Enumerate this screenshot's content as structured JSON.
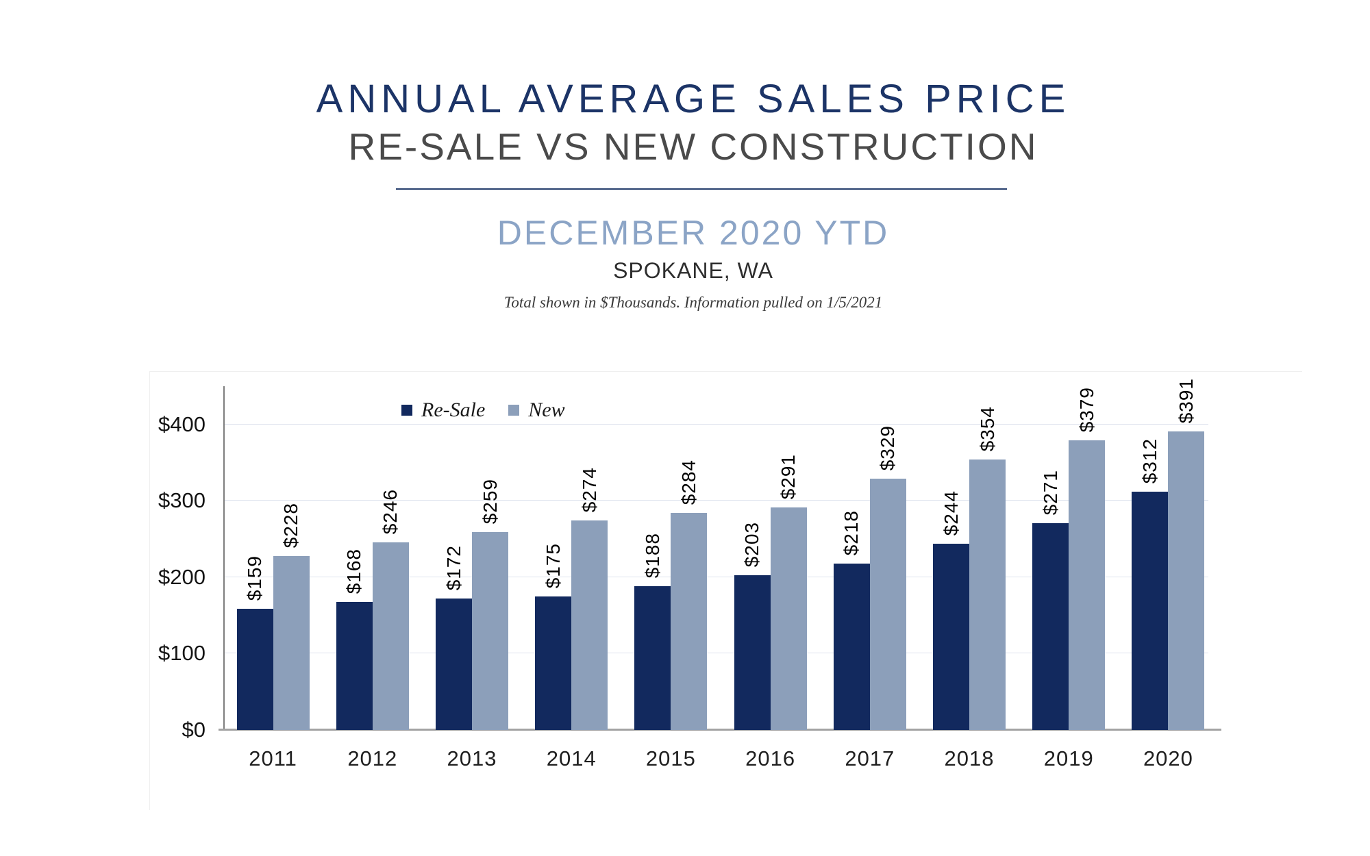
{
  "header": {
    "title": "ANNUAL AVERAGE SALES PRICE",
    "subtitle": "RE-SALE VS NEW CONSTRUCTION",
    "period": "DECEMBER 2020 YTD",
    "location": "SPOKANE, WA",
    "note": "Total shown in $Thousands. Information pulled on 1/5/2021"
  },
  "colors": {
    "title_navy": "#1c3467",
    "subtitle_gray": "#4a4a4a",
    "period_blue": "#8ba4c6",
    "divider_navy": "#27406e",
    "resale_bar": "#12295e",
    "new_bar": "#8c9fba",
    "gridline": "#dde2ed",
    "axis_gray": "#a3a3a3"
  },
  "chart_data": {
    "type": "bar",
    "title": "ANNUAL AVERAGE SALES PRICE — RE-SALE VS NEW CONSTRUCTION",
    "subtitle": "DECEMBER 2020 YTD, SPOKANE, WA",
    "units": "$Thousands",
    "categories": [
      "2011",
      "2012",
      "2013",
      "2014",
      "2015",
      "2016",
      "2017",
      "2018",
      "2019",
      "2020"
    ],
    "series": [
      {
        "name": "Re-Sale",
        "color": "#12295e",
        "values": [
          159,
          168,
          172,
          175,
          188,
          203,
          218,
          244,
          271,
          312
        ]
      },
      {
        "name": "New",
        "color": "#8c9fba",
        "values": [
          228,
          246,
          259,
          274,
          284,
          291,
          329,
          354,
          379,
          391
        ]
      }
    ],
    "value_prefix": "$",
    "data_labels_rotation": 90,
    "y_ticks": [
      {
        "value": 0,
        "label": "$0"
      },
      {
        "value": 100,
        "label": "$100"
      },
      {
        "value": 200,
        "label": "$200"
      },
      {
        "value": 300,
        "label": "$300"
      },
      {
        "value": 400,
        "label": "$400"
      }
    ],
    "ylim": [
      0,
      450
    ],
    "grid": true,
    "legend_position": "inside-top-left"
  }
}
